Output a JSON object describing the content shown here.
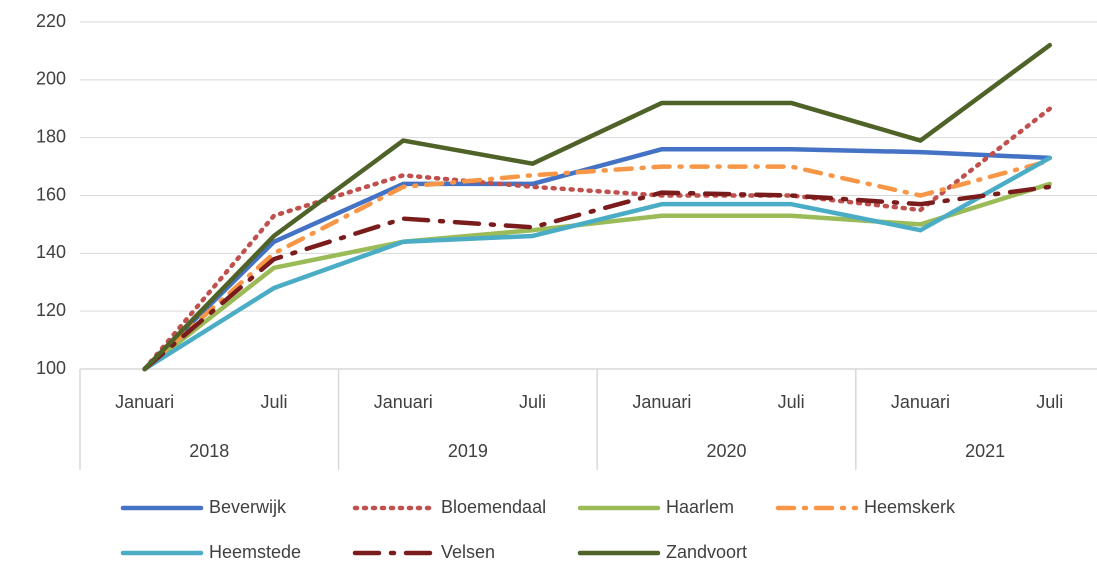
{
  "chart_data": {
    "type": "line",
    "categories": [
      "Januari",
      "Juli",
      "Januari",
      "Juli",
      "Januari",
      "Juli",
      "Januari",
      "Juli"
    ],
    "category_groups": [
      "2018",
      "2019",
      "2020",
      "2021"
    ],
    "ylim": [
      100,
      220
    ],
    "yticks": [
      100,
      120,
      140,
      160,
      180,
      200,
      220
    ],
    "grid": true,
    "series": [
      {
        "name": "Beverwijk",
        "color": "#4472c4",
        "style": "solid",
        "values": [
          100,
          144,
          164,
          164,
          176,
          176,
          175,
          173
        ]
      },
      {
        "name": "Bloemendaal",
        "color": "#c0504d",
        "style": "dot",
        "values": [
          100,
          153,
          167,
          163,
          160,
          160,
          155,
          190
        ]
      },
      {
        "name": "Haarlem",
        "color": "#9bbb59",
        "style": "solid",
        "values": [
          100,
          135,
          144,
          148,
          153,
          153,
          150,
          164
        ]
      },
      {
        "name": "Heemskerk",
        "color": "#f79646",
        "style": "dashdot",
        "values": [
          100,
          140,
          163,
          167,
          170,
          170,
          160,
          172
        ]
      },
      {
        "name": "Heemstede",
        "color": "#4bacc6",
        "style": "solid",
        "values": [
          100,
          128,
          144,
          146,
          157,
          157,
          148,
          173
        ]
      },
      {
        "name": "Velsen",
        "color": "#7b1c1c",
        "style": "longdashdot",
        "values": [
          100,
          138,
          152,
          149,
          161,
          160,
          157,
          163
        ]
      },
      {
        "name": "Zandvoort",
        "color": "#4f6228",
        "style": "solid",
        "values": [
          100,
          146,
          179,
          171,
          192,
          192,
          179,
          212
        ]
      }
    ]
  }
}
